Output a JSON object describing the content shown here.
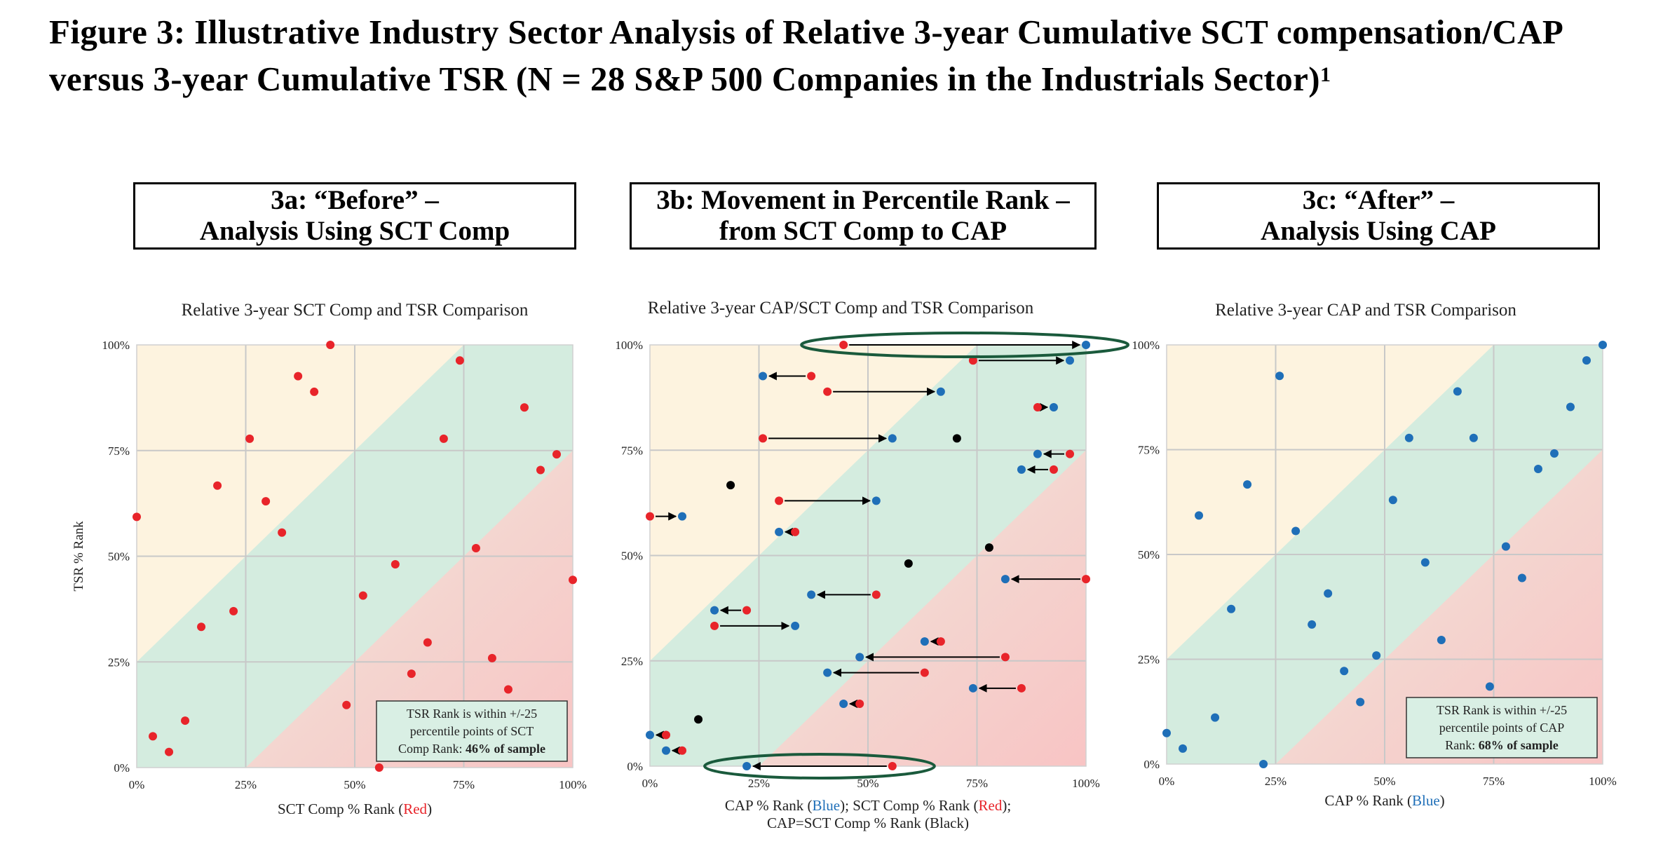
{
  "figure": {
    "title_main": "Figure 3: Illustrative Industry Sector Analysis of Relative 3-year Cumulative SCT compensation/CAP versus 3-year Cumulative TSR (N = 28 S&P 500 Companies in the Industrials Sector)",
    "title_footnote": "1"
  },
  "panels": [
    {
      "line1": "3a: “Before” –",
      "line2": "Analysis Using SCT Comp"
    },
    {
      "line1": "3b: Movement in Percentile Rank –",
      "line2": "from SCT Comp to CAP"
    },
    {
      "line1": "3c: “After” –",
      "line2": "Analysis Using CAP"
    }
  ],
  "colors": {
    "upper_zone": "#fdf3df",
    "middle_zone": "#d4ecdf",
    "lower_zone_light": "#f0e7dd",
    "lower_zone_dark": "#f7c9c9",
    "red_point": "#e8242a",
    "blue_point": "#1f6fb8",
    "black_point": "#000000",
    "ellipse": "#1a5a3c",
    "gridline": "#c8c8c8"
  },
  "chart_data": [
    {
      "type": "scatter",
      "title": "Relative 3-year SCT Comp and TSR Comparison",
      "xlabel": "SCT Comp % Rank (",
      "xlabel_colored": "Red",
      "xlabel_color": "#e8242a",
      "xlabel_end": ")",
      "ylabel": "TSR % Rank",
      "xlim": [
        0,
        1
      ],
      "ylim": [
        0,
        1
      ],
      "x_ticks": [
        "0%",
        "25%",
        "50%",
        "75%",
        "100%"
      ],
      "y_ticks": [
        "0%",
        "25%",
        "50%",
        "75%",
        "100%"
      ],
      "grid": true,
      "bands": "upper: TSR rank > comp rank + 25%; middle: within +/-25; lower: TSR rank < comp rank - 25%",
      "series": [
        {
          "color": "red",
          "points": [
            [
              0.0,
              0.593
            ],
            [
              0.037,
              0.074
            ],
            [
              0.074,
              0.037
            ],
            [
              0.111,
              0.111
            ],
            [
              0.148,
              0.333
            ],
            [
              0.185,
              0.667
            ],
            [
              0.222,
              0.37
            ],
            [
              0.259,
              0.778
            ],
            [
              0.296,
              0.63
            ],
            [
              0.333,
              0.556
            ],
            [
              0.37,
              0.926
            ],
            [
              0.407,
              0.889
            ],
            [
              0.444,
              1.0
            ],
            [
              0.481,
              0.148
            ],
            [
              0.519,
              0.407
            ],
            [
              0.556,
              0.0
            ],
            [
              0.593,
              0.481
            ],
            [
              0.63,
              0.222
            ],
            [
              0.667,
              0.296
            ],
            [
              0.704,
              0.778
            ],
            [
              0.741,
              0.963
            ],
            [
              0.778,
              0.519
            ],
            [
              0.815,
              0.259
            ],
            [
              0.852,
              0.185
            ],
            [
              0.889,
              0.852
            ],
            [
              0.926,
              0.704
            ],
            [
              0.963,
              0.741
            ],
            [
              1.0,
              0.444
            ]
          ]
        }
      ],
      "annotation": {
        "line1": "TSR Rank is within +/-25",
        "line2": "percentile points of SCT",
        "line3": "Comp Rank: ",
        "line3_bold": "46% of sample"
      }
    },
    {
      "type": "scatter",
      "title": "Relative 3-year CAP/SCT Comp and TSR Comparison",
      "xlabel": "CAP % Rank (",
      "xlabel_blue": "Blue",
      "xlabel_mid": "); SCT Comp % Rank (",
      "xlabel_red": "Red",
      "xlabel_end": ");",
      "xlabel_line2": "CAP=SCT Comp % Rank (Black)",
      "xlim": [
        0,
        1
      ],
      "ylim": [
        0,
        1
      ],
      "x_ticks": [
        "0%",
        "25%",
        "50%",
        "75%",
        "100%"
      ],
      "y_ticks": [
        "0%",
        "25%",
        "50%",
        "75%",
        "100%"
      ],
      "grid": true,
      "movements": [
        {
          "y": 1.0,
          "sct": 0.444,
          "cap": 1.0
        },
        {
          "y": 0.963,
          "sct": 0.741,
          "cap": 0.963
        },
        {
          "y": 0.926,
          "sct": 0.37,
          "cap": 0.259
        },
        {
          "y": 0.889,
          "sct": 0.407,
          "cap": 0.667
        },
        {
          "y": 0.852,
          "sct": 0.889,
          "cap": 0.926
        },
        {
          "y": 0.778,
          "sct": 0.259,
          "cap": 0.556
        },
        {
          "y": 0.741,
          "sct": 0.963,
          "cap": 0.889
        },
        {
          "y": 0.704,
          "sct": 0.926,
          "cap": 0.852
        },
        {
          "y": 0.63,
          "sct": 0.296,
          "cap": 0.519
        },
        {
          "y": 0.593,
          "sct": 0.0,
          "cap": 0.074
        },
        {
          "y": 0.556,
          "sct": 0.333,
          "cap": 0.296
        },
        {
          "y": 0.444,
          "sct": 1.0,
          "cap": 0.815
        },
        {
          "y": 0.407,
          "sct": 0.519,
          "cap": 0.37
        },
        {
          "y": 0.37,
          "sct": 0.222,
          "cap": 0.148
        },
        {
          "y": 0.333,
          "sct": 0.148,
          "cap": 0.333
        },
        {
          "y": 0.296,
          "sct": 0.667,
          "cap": 0.63
        },
        {
          "y": 0.259,
          "sct": 0.815,
          "cap": 0.481
        },
        {
          "y": 0.222,
          "sct": 0.63,
          "cap": 0.407
        },
        {
          "y": 0.185,
          "sct": 0.852,
          "cap": 0.741
        },
        {
          "y": 0.148,
          "sct": 0.481,
          "cap": 0.444
        },
        {
          "y": 0.074,
          "sct": 0.037,
          "cap": 0.0
        },
        {
          "y": 0.037,
          "sct": 0.074,
          "cap": 0.037
        },
        {
          "y": 0.0,
          "sct": 0.556,
          "cap": 0.222
        }
      ],
      "unchanged": [
        [
          0.185,
          0.667
        ],
        [
          0.111,
          0.111
        ],
        [
          0.704,
          0.778
        ],
        [
          0.778,
          0.519
        ],
        [
          0.593,
          0.481
        ]
      ],
      "highlighted_movements": [
        0,
        22
      ]
    },
    {
      "type": "scatter",
      "title": "Relative 3-year CAP and TSR Comparison",
      "xlabel": "CAP % Rank (",
      "xlabel_colored": "Blue",
      "xlabel_color": "#1f6fb8",
      "xlabel_end": ")",
      "xlim": [
        0,
        1
      ],
      "ylim": [
        0,
        1
      ],
      "x_ticks": [
        "0%",
        "25%",
        "50%",
        "75%",
        "100%"
      ],
      "y_ticks": [
        "0%",
        "25%",
        "50%",
        "75%",
        "100%"
      ],
      "grid": true,
      "series": [
        {
          "color": "blue",
          "points": [
            [
              0.0,
              0.074
            ],
            [
              0.037,
              0.037
            ],
            [
              0.074,
              0.593
            ],
            [
              0.111,
              0.111
            ],
            [
              0.148,
              0.37
            ],
            [
              0.185,
              0.667
            ],
            [
              0.222,
              0.0
            ],
            [
              0.259,
              0.926
            ],
            [
              0.296,
              0.556
            ],
            [
              0.333,
              0.333
            ],
            [
              0.37,
              0.407
            ],
            [
              0.407,
              0.222
            ],
            [
              0.444,
              0.148
            ],
            [
              0.481,
              0.259
            ],
            [
              0.519,
              0.63
            ],
            [
              0.556,
              0.778
            ],
            [
              0.593,
              0.481
            ],
            [
              0.63,
              0.296
            ],
            [
              0.667,
              0.889
            ],
            [
              0.704,
              0.778
            ],
            [
              0.741,
              0.185
            ],
            [
              0.778,
              0.519
            ],
            [
              0.815,
              0.444
            ],
            [
              0.852,
              0.704
            ],
            [
              0.889,
              0.741
            ],
            [
              0.926,
              0.852
            ],
            [
              0.963,
              0.963
            ],
            [
              1.0,
              1.0
            ]
          ]
        }
      ],
      "annotation": {
        "line1": "TSR Rank is within +/-25",
        "line2": "percentile points of CAP",
        "line3": "Rank: ",
        "line3_bold": "68% of sample"
      }
    }
  ]
}
